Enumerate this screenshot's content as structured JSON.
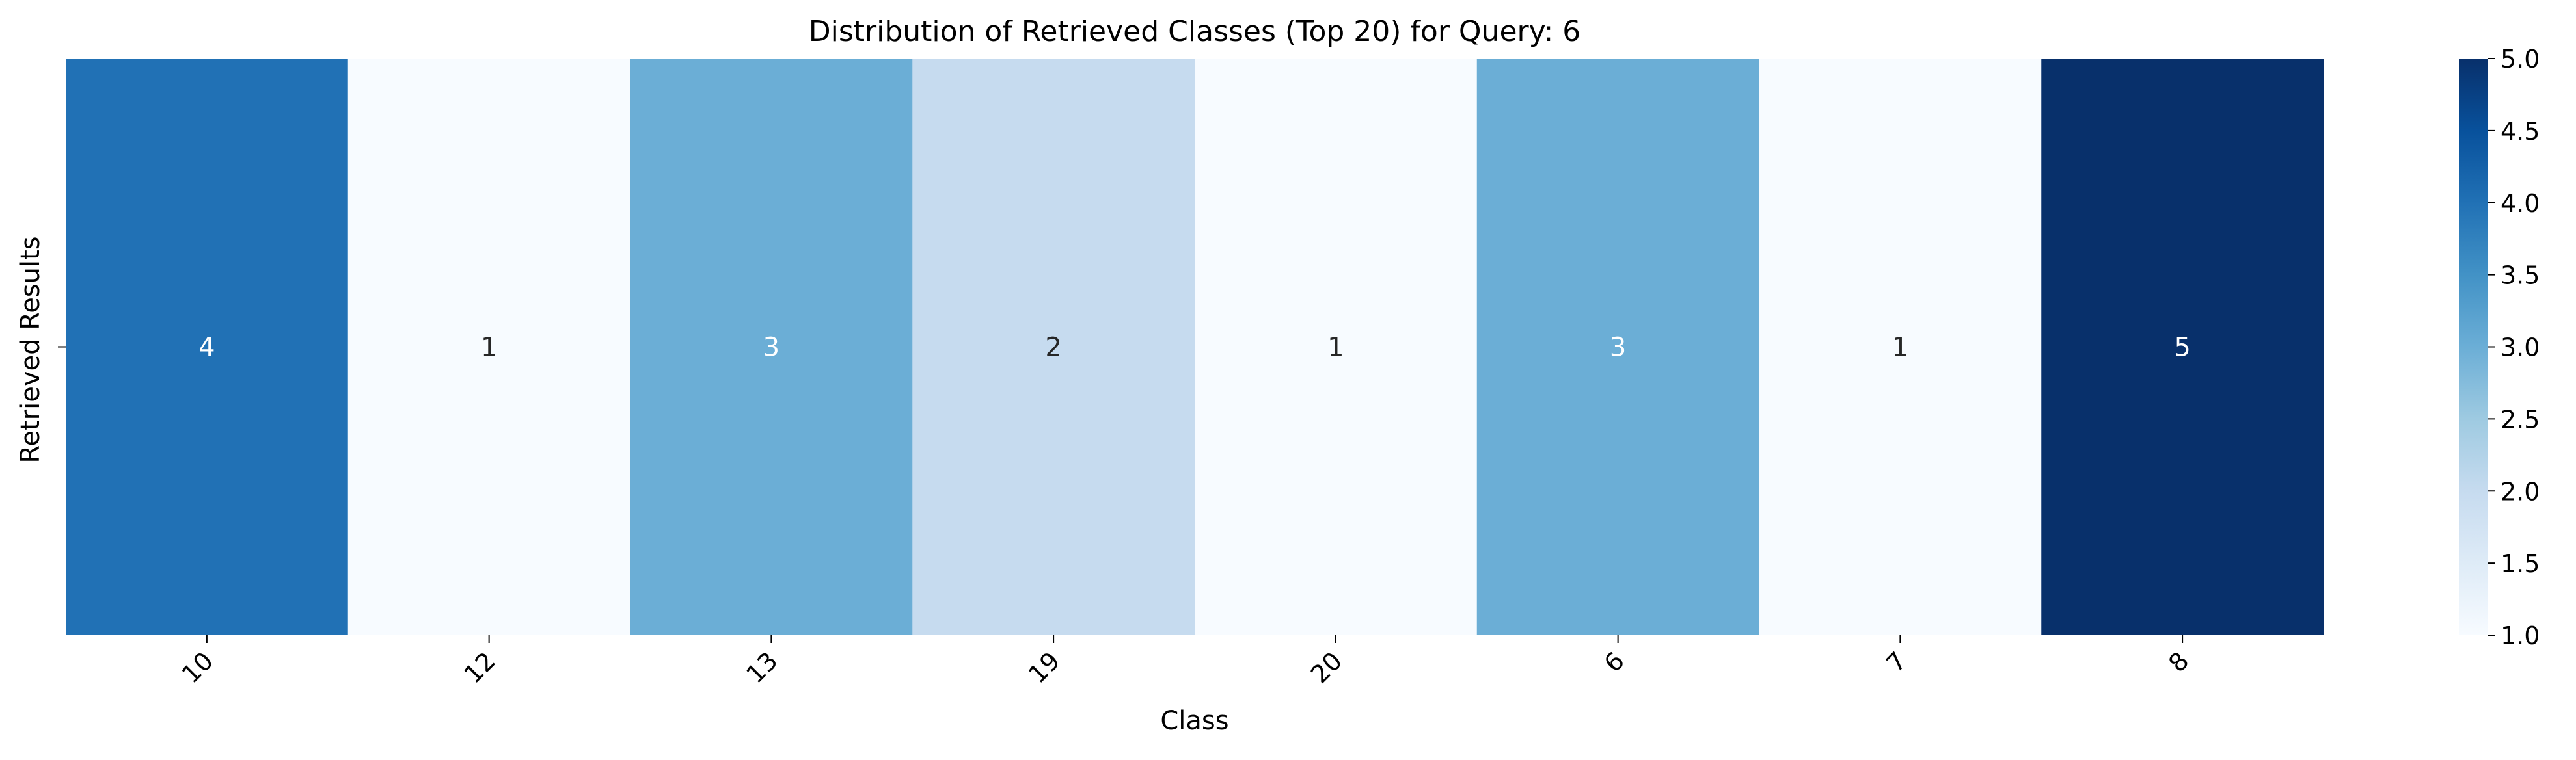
{
  "chart_data": {
    "type": "heatmap",
    "title": "Distribution of Retrieved Classes (Top 20) for Query: 6",
    "xlabel": "Class",
    "ylabel": "Retrieved Results",
    "categories": [
      "10",
      "12",
      "13",
      "19",
      "20",
      "6",
      "7",
      "8"
    ],
    "values": [
      4,
      1,
      3,
      2,
      1,
      3,
      1,
      5
    ],
    "annotations": [
      "4",
      "1",
      "3",
      "2",
      "1",
      "3",
      "1",
      "5"
    ],
    "colormap": "Blues",
    "colors": {
      "1": "#f7fbff",
      "2": "#c6dbef",
      "3": "#6baed6",
      "4": "#2171b5",
      "5": "#08306b"
    },
    "colorbar": {
      "range": [
        1.0,
        5.0
      ],
      "ticks": [
        1.0,
        1.5,
        2.0,
        2.5,
        3.0,
        3.5,
        4.0,
        4.5,
        5.0
      ],
      "tick_labels": [
        "1.0",
        "1.5",
        "2.0",
        "2.5",
        "3.0",
        "3.5",
        "4.0",
        "4.5",
        "5.0"
      ]
    },
    "legend": "right",
    "grid": false
  }
}
